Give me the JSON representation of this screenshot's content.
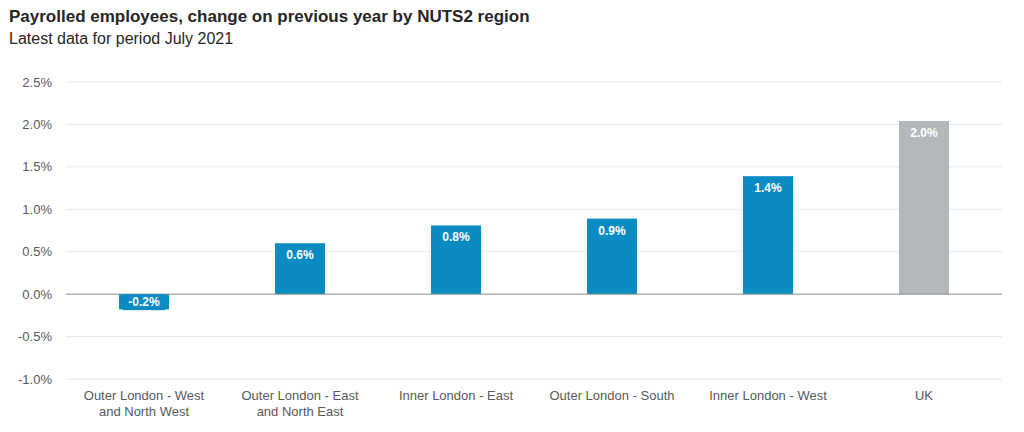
{
  "chart_data": {
    "type": "bar",
    "title": "Payrolled employees, change on previous year by NUTS2 region",
    "subtitle": "Latest data for period July 2021",
    "categories": [
      "Outer London - West and North West",
      "Outer London - East and North East",
      "Inner London - East",
      "Outer London - South",
      "Inner London - West",
      "UK"
    ],
    "values": [
      -0.18,
      0.6,
      0.81,
      0.89,
      1.39,
      2.04
    ],
    "value_labels": [
      "-0.2%",
      "0.6%",
      "0.8%",
      "0.9%",
      "1.4%",
      "2.0%"
    ],
    "colors": [
      "#0a8bc2",
      "#0a8bc2",
      "#0a8bc2",
      "#0a8bc2",
      "#0a8bc2",
      "#b4b8bb"
    ],
    "ylim": [
      -1,
      2.5
    ],
    "yticks": [
      {
        "value": -1,
        "label": "-1.0%"
      },
      {
        "value": -0.5,
        "label": "-0.5%"
      },
      {
        "value": 0,
        "label": "0.0%"
      },
      {
        "value": 0.5,
        "label": "0.5%"
      },
      {
        "value": 1,
        "label": "1.0%"
      },
      {
        "value": 1.5,
        "label": "1.5%"
      },
      {
        "value": 2,
        "label": "2.0%"
      },
      {
        "value": 2.5,
        "label": "2.5%"
      }
    ],
    "grid": true,
    "data_labels": true
  }
}
